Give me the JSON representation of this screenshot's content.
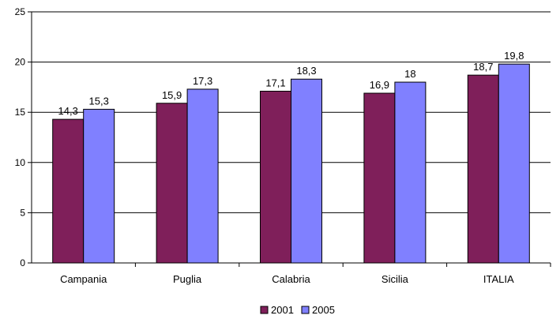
{
  "chart_data": {
    "type": "bar",
    "title": "",
    "xlabel": "",
    "ylabel": "",
    "categories": [
      "Campania",
      "Puglia",
      "Calabria",
      "Sicilia",
      "ITALIA"
    ],
    "series": [
      {
        "name": "2001",
        "color": "#7F1F5A",
        "values": [
          14.3,
          15.9,
          17.1,
          16.9,
          18.7
        ],
        "labels": [
          "14,3",
          "15,9",
          "17,1",
          "16,9",
          "18,7"
        ]
      },
      {
        "name": "2005",
        "color": "#8080FF",
        "values": [
          15.3,
          17.3,
          18.3,
          18,
          19.8
        ],
        "labels": [
          "15,3",
          "17,3",
          "18,3",
          "18",
          "19,8"
        ]
      }
    ],
    "ylim": [
      0,
      25
    ],
    "yticks": [
      "0",
      "5",
      "10",
      "15",
      "20",
      "25"
    ],
    "grid": true,
    "legend_position": "bottom"
  }
}
